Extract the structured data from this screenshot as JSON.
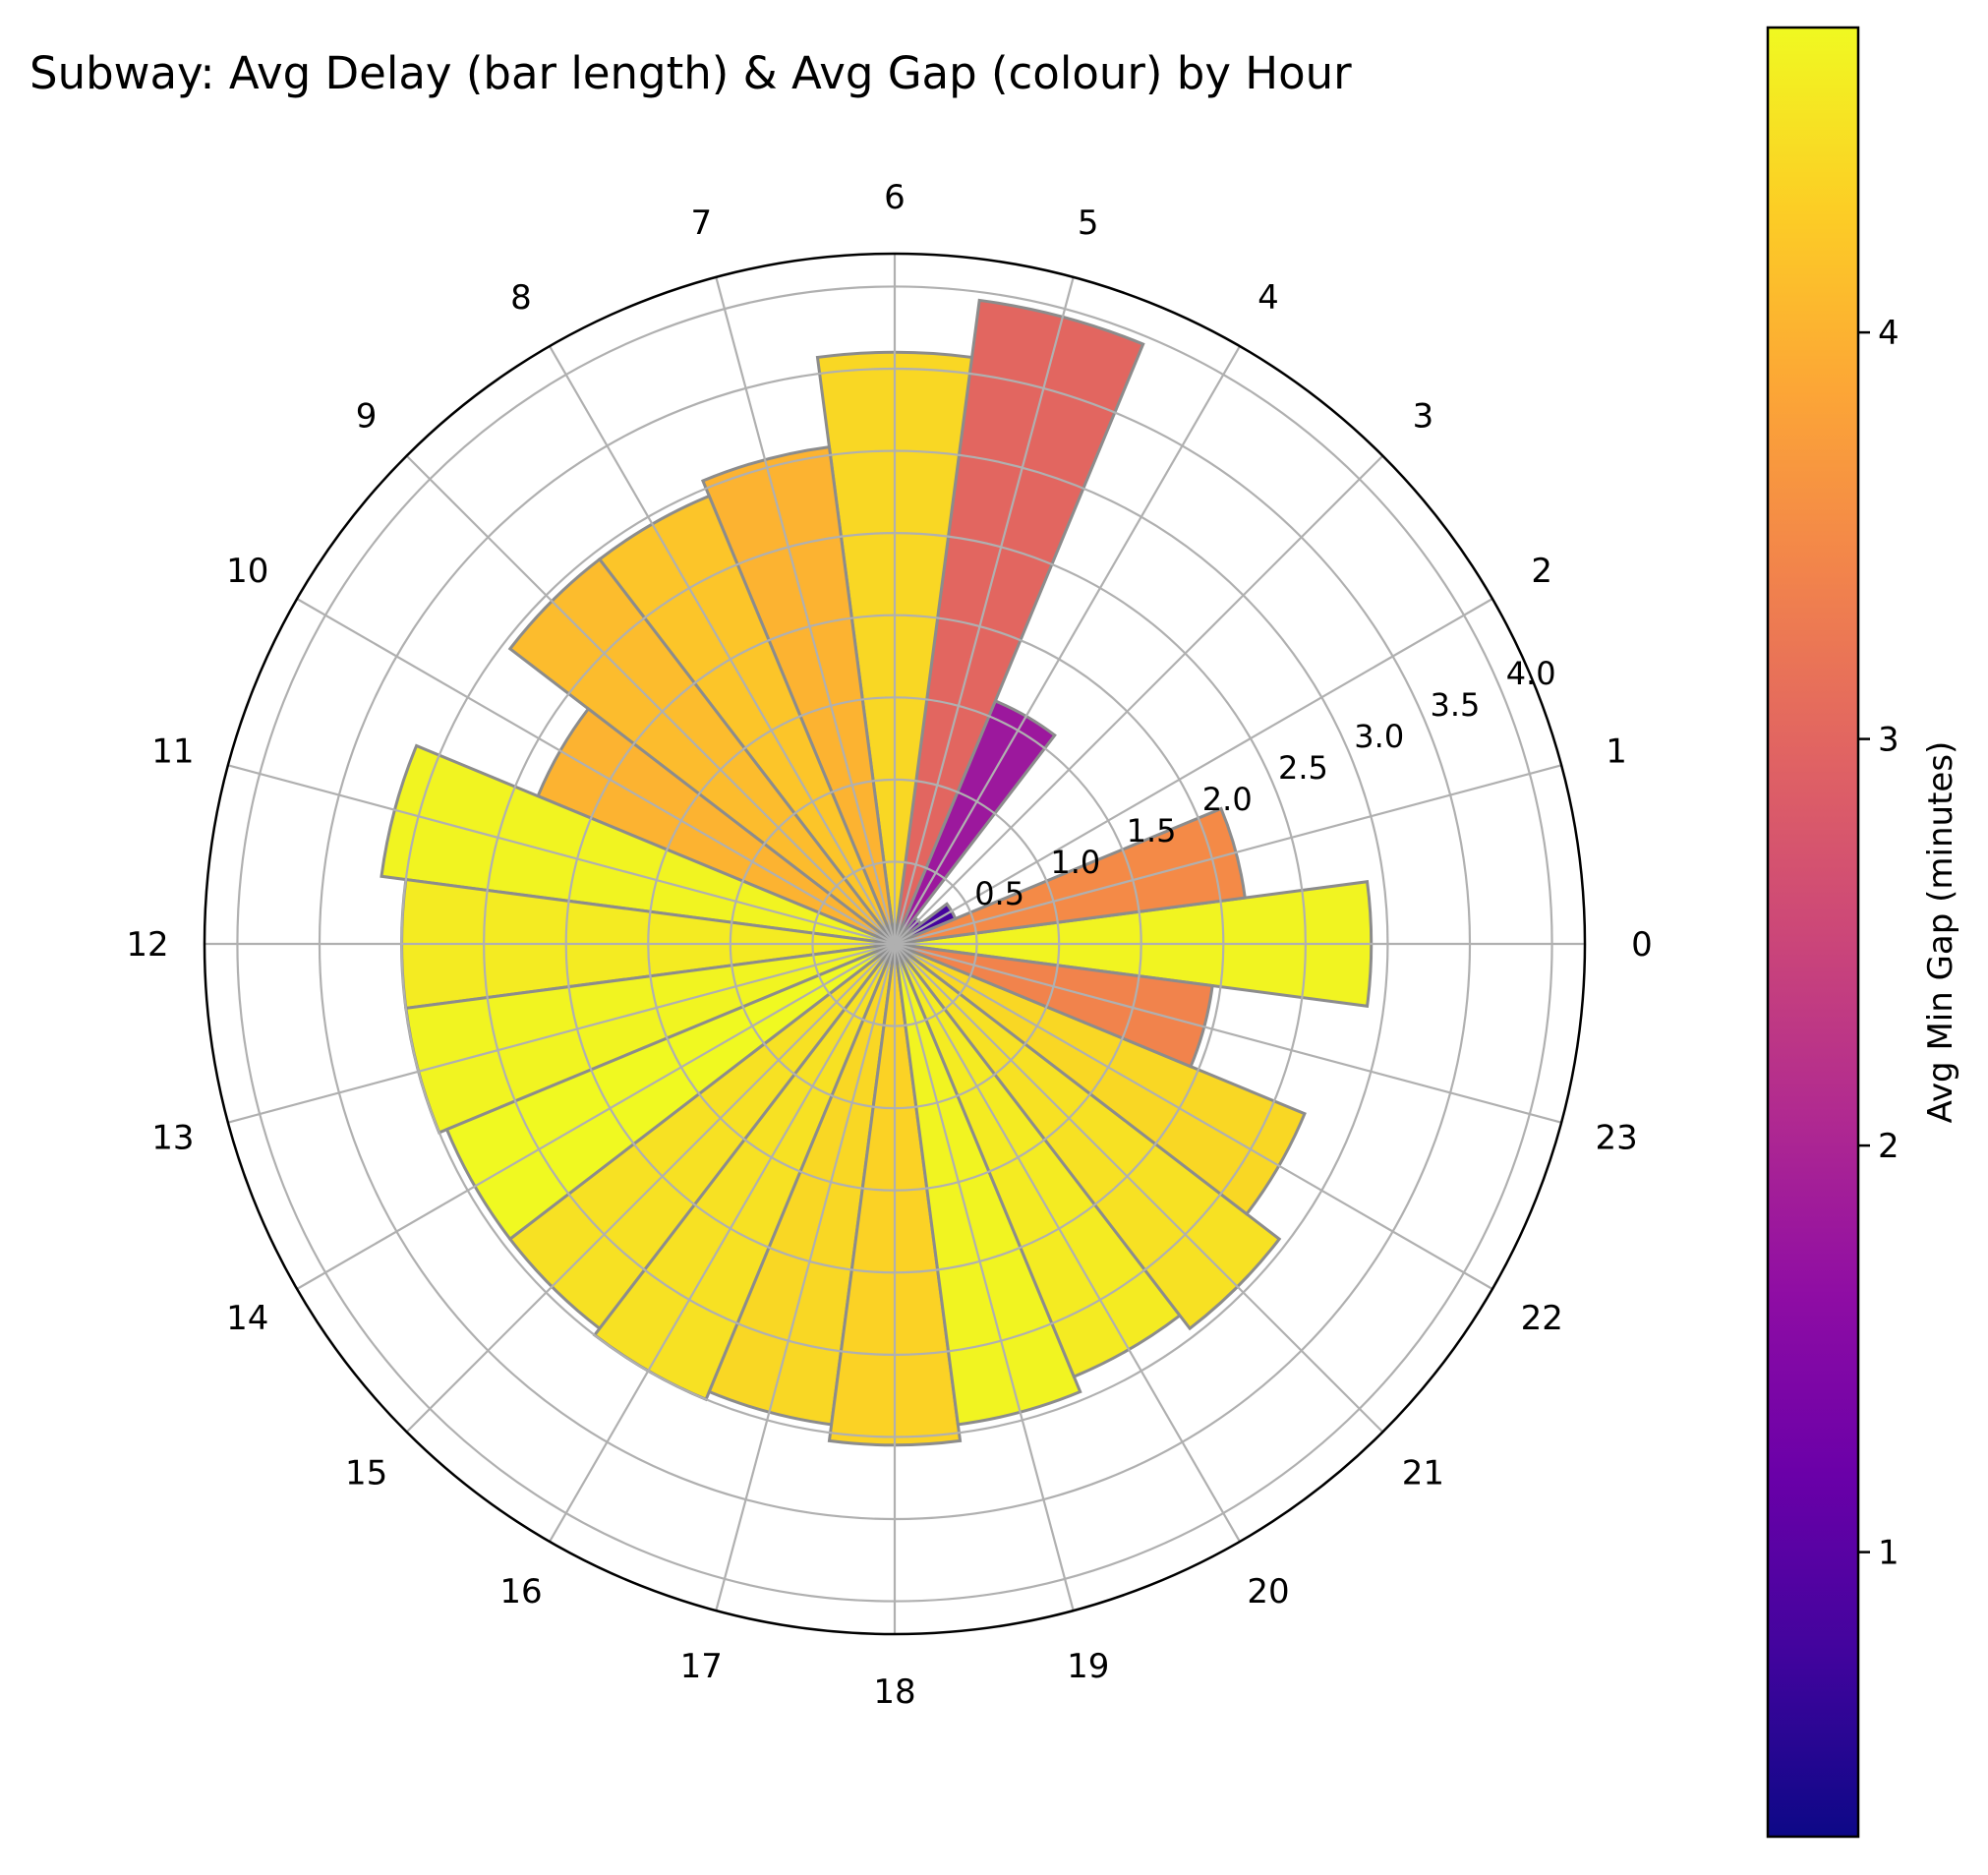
{
  "chart_data": {
    "type": "bar",
    "subtype": "polar",
    "title": "Subway: Avg Delay (bar length) & Avg Gap (colour) by Hour",
    "categories": [
      "0",
      "1",
      "2",
      "3",
      "4",
      "5",
      "6",
      "7",
      "8",
      "9",
      "10",
      "11",
      "12",
      "13",
      "14",
      "15",
      "16",
      "17",
      "18",
      "19",
      "20",
      "21",
      "22",
      "23"
    ],
    "series": [
      {
        "values": [
          2.9,
          2.15,
          0.4,
          0.2,
          1.6,
          3.95,
          3.6,
          3.05,
          2.95,
          2.95,
          2.35,
          3.15,
          3.0,
          3.0,
          2.95,
          2.95,
          3.0,
          2.95,
          3.05,
          2.95,
          2.85,
          2.95,
          2.7,
          1.95
        ]
      },
      {
        "values": [
          4.7,
          3.5,
          0.8,
          1.2,
          1.8,
          3.0,
          4.4,
          4.0,
          4.2,
          4.1,
          4.0,
          4.7,
          4.6,
          4.7,
          4.75,
          4.5,
          4.5,
          4.4,
          4.35,
          4.7,
          4.6,
          4.5,
          4.4,
          3.4
        ]
      }
    ],
    "radial_ticks": [
      "0.5",
      "1.0",
      "1.5",
      "2.0",
      "2.5",
      "3.0",
      "3.5",
      "4.0"
    ],
    "rlim": [
      0,
      4.2
    ],
    "theta_direction": "counter-clockwise",
    "theta_zero": "east",
    "grid": true,
    "colormap": "plasma",
    "colorbar": {
      "label": "Avg Min Gap (minutes)",
      "range": [
        0.3,
        4.75
      ],
      "ticks": [
        "1",
        "2",
        "3",
        "4"
      ]
    },
    "bar_edge_color": "#8c8c8c",
    "grid_color": "#b0b0b0"
  }
}
